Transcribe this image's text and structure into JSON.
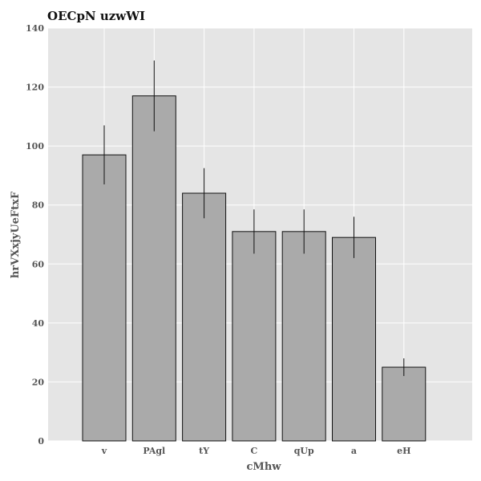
{
  "chart_data": {
    "type": "bar",
    "title": "OECpN uzwWI",
    "xlabel": "cMhw",
    "ylabel": "hrVXxjyUeFtxF",
    "categories": [
      "v",
      "PAgl",
      "tY",
      "C",
      "qUp",
      "a",
      "eH"
    ],
    "values": [
      97,
      117,
      84,
      71,
      71,
      69,
      25
    ],
    "errors": [
      10,
      12,
      8.5,
      7.5,
      7.5,
      7,
      3
    ],
    "ylim": [
      0,
      140
    ],
    "yticks": [
      0,
      20,
      40,
      60,
      80,
      100,
      120,
      140
    ],
    "grid": true,
    "colors": {
      "background": "#e5e5e5",
      "grid": "#ffffff",
      "bar_fill": "#aaaaaa",
      "bar_edge": "#111111",
      "error_bar": "#111111"
    }
  }
}
